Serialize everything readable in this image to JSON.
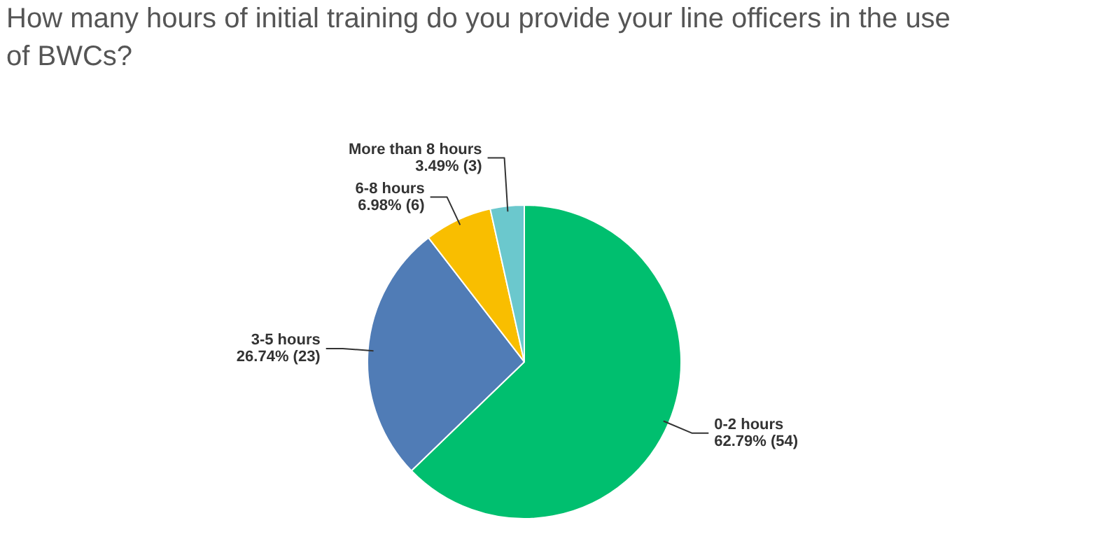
{
  "chart_data": {
    "type": "pie",
    "title": "How many hours of initial training do you provide your line officers in the use of BWCs?",
    "categories": [
      "0-2 hours",
      "3-5 hours",
      "6-8 hours",
      "More than 8 hours"
    ],
    "values": [
      54,
      23,
      6,
      3
    ],
    "value_labels": [
      "62.79% (54)",
      "26.74% (23)",
      "6.98% (6)",
      "3.49% (3)"
    ],
    "colors": [
      "#00bf6f",
      "#507cb6",
      "#f9be00",
      "#6bc8cd"
    ]
  }
}
